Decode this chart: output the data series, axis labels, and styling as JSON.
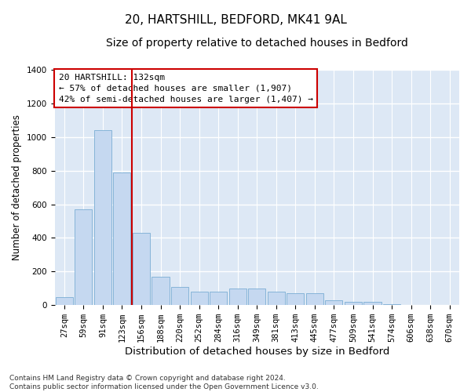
{
  "title1": "20, HARTSHILL, BEDFORD, MK41 9AL",
  "title2": "Size of property relative to detached houses in Bedford",
  "xlabel": "Distribution of detached houses by size in Bedford",
  "ylabel": "Number of detached properties",
  "footnote": "Contains HM Land Registry data © Crown copyright and database right 2024.\nContains public sector information licensed under the Open Government Licence v3.0.",
  "bin_labels": [
    "27sqm",
    "59sqm",
    "91sqm",
    "123sqm",
    "156sqm",
    "188sqm",
    "220sqm",
    "252sqm",
    "284sqm",
    "316sqm",
    "349sqm",
    "381sqm",
    "413sqm",
    "445sqm",
    "477sqm",
    "509sqm",
    "541sqm",
    "574sqm",
    "606sqm",
    "638sqm",
    "670sqm"
  ],
  "bar_heights": [
    50,
    570,
    1040,
    790,
    430,
    170,
    110,
    80,
    80,
    100,
    100,
    80,
    70,
    70,
    30,
    20,
    20,
    5,
    3,
    2,
    1
  ],
  "bar_color": "#c5d8f0",
  "bar_edge_color": "#7aadd4",
  "background_color": "#dde8f5",
  "grid_color": "#ffffff",
  "vline_color": "#cc0000",
  "annotation_text": "20 HARTSHILL: 132sqm\n← 57% of detached houses are smaller (1,907)\n42% of semi-detached houses are larger (1,407) →",
  "annotation_box_color": "#cc0000",
  "annotation_bg": "#ffffff",
  "ylim": [
    0,
    1400
  ],
  "yticks": [
    0,
    200,
    400,
    600,
    800,
    1000,
    1200,
    1400
  ],
  "title1_fontsize": 11,
  "title2_fontsize": 10,
  "xlabel_fontsize": 9.5,
  "ylabel_fontsize": 8.5,
  "tick_fontsize": 7.5,
  "annot_fontsize": 8,
  "footnote_fontsize": 6.5
}
